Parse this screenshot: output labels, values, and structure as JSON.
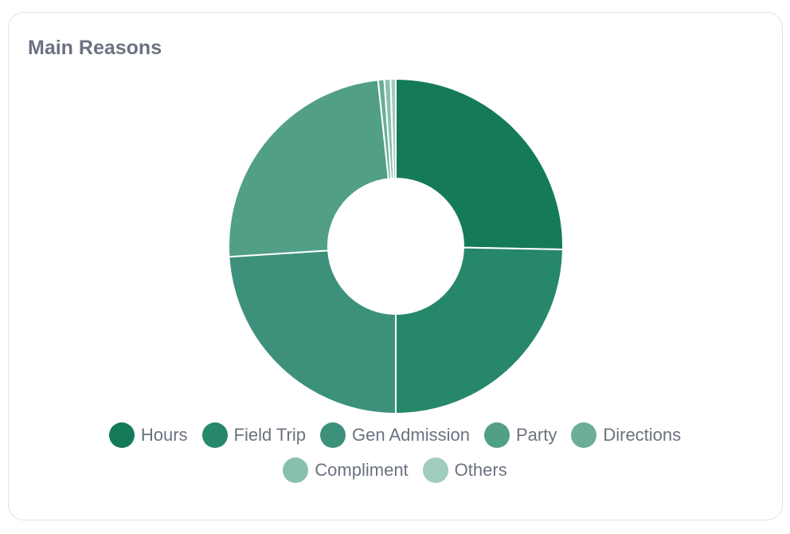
{
  "chart_data": {
    "type": "donut",
    "title": "Main Reasons",
    "categories": [
      "Hours",
      "Field Trip",
      "Gen Admission",
      "Party",
      "Directions",
      "Compliment",
      "Others"
    ],
    "values": [
      25.3,
      24.7,
      24.0,
      24.3,
      0.6,
      0.6,
      0.5
    ],
    "colors": [
      "#147a5a",
      "#26876a",
      "#3d917a",
      "#529f88",
      "#6aae98",
      "#88c0ae",
      "#a0cdbf"
    ]
  }
}
